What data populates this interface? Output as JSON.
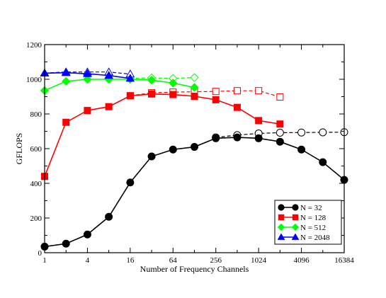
{
  "chart_data": {
    "type": "line",
    "title": "",
    "xlabel": "Number of Frequency Channels",
    "ylabel": "GFLOPS",
    "xscale": "log2",
    "xlim": [
      1,
      16384
    ],
    "ylim": [
      0,
      1200
    ],
    "xticks": [
      1,
      4,
      16,
      64,
      256,
      1024,
      4096,
      16384
    ],
    "xtick_labels": [
      "1",
      "4",
      "16",
      "64",
      "256",
      "1024",
      "4096",
      "16384"
    ],
    "yticks": [
      0,
      200,
      400,
      600,
      800,
      1000,
      1200
    ],
    "ytick_labels": [
      "0",
      "200",
      "400",
      "600",
      "800",
      "1000",
      "1200"
    ],
    "grid": false,
    "legend_position": "bottom-right",
    "series": [
      {
        "name": "N = 32",
        "color": "#000000",
        "marker": "circle",
        "filled": true,
        "line": "solid",
        "x": [
          1,
          2,
          4,
          8,
          16,
          32,
          64,
          128,
          256,
          512,
          1024,
          2048,
          4096,
          8192,
          16384
        ],
        "values": [
          35,
          52,
          105,
          207,
          405,
          555,
          595,
          610,
          660,
          665,
          660,
          640,
          595,
          522,
          420
        ]
      },
      {
        "name": "",
        "color": "#000000",
        "marker": "circle",
        "filled": false,
        "line": "dashed",
        "x": [
          256,
          512,
          1024,
          2048,
          4096,
          8192,
          16384
        ],
        "values": [
          665,
          678,
          688,
          692,
          693,
          694,
          695
        ]
      },
      {
        "name": "N = 128",
        "color": "#ff0000",
        "marker": "square",
        "filled": true,
        "line": "solid",
        "x": [
          1,
          2,
          4,
          8,
          16,
          32,
          64,
          128,
          256,
          512,
          1024,
          2048
        ],
        "values": [
          440,
          752,
          820,
          842,
          905,
          915,
          912,
          902,
          882,
          838,
          762,
          742
        ]
      },
      {
        "name": "",
        "color": "#ff0000",
        "marker": "square",
        "filled": false,
        "line": "dashed",
        "x": [
          16,
          32,
          64,
          128,
          256,
          512,
          1024,
          2048
        ],
        "values": [
          905,
          922,
          926,
          928,
          930,
          934,
          934,
          898
        ]
      },
      {
        "name": "N = 512",
        "color": "#00ff00",
        "marker": "diamond",
        "filled": true,
        "line": "solid",
        "x": [
          1,
          2,
          4,
          8,
          16,
          32,
          64,
          128
        ],
        "values": [
          935,
          988,
          1000,
          1000,
          1000,
          995,
          978,
          953
        ]
      },
      {
        "name": "",
        "color": "#00ff00",
        "marker": "diamond",
        "filled": false,
        "line": "dashed",
        "x": [
          16,
          32,
          64,
          128
        ],
        "values": [
          1005,
          1008,
          1005,
          1010
        ]
      },
      {
        "name": "N = 2048",
        "color": "#0000ff",
        "marker": "triangle",
        "filled": true,
        "line": "solid",
        "x": [
          1,
          2,
          4,
          8,
          16
        ],
        "values": [
          1035,
          1038,
          1032,
          1022,
          1005
        ]
      },
      {
        "name": "",
        "color": "#0000ff",
        "marker": "triangle",
        "filled": false,
        "line": "dashed",
        "x": [
          1,
          2,
          4,
          8,
          16
        ],
        "values": [
          1036,
          1042,
          1042,
          1042,
          1030
        ]
      }
    ]
  }
}
